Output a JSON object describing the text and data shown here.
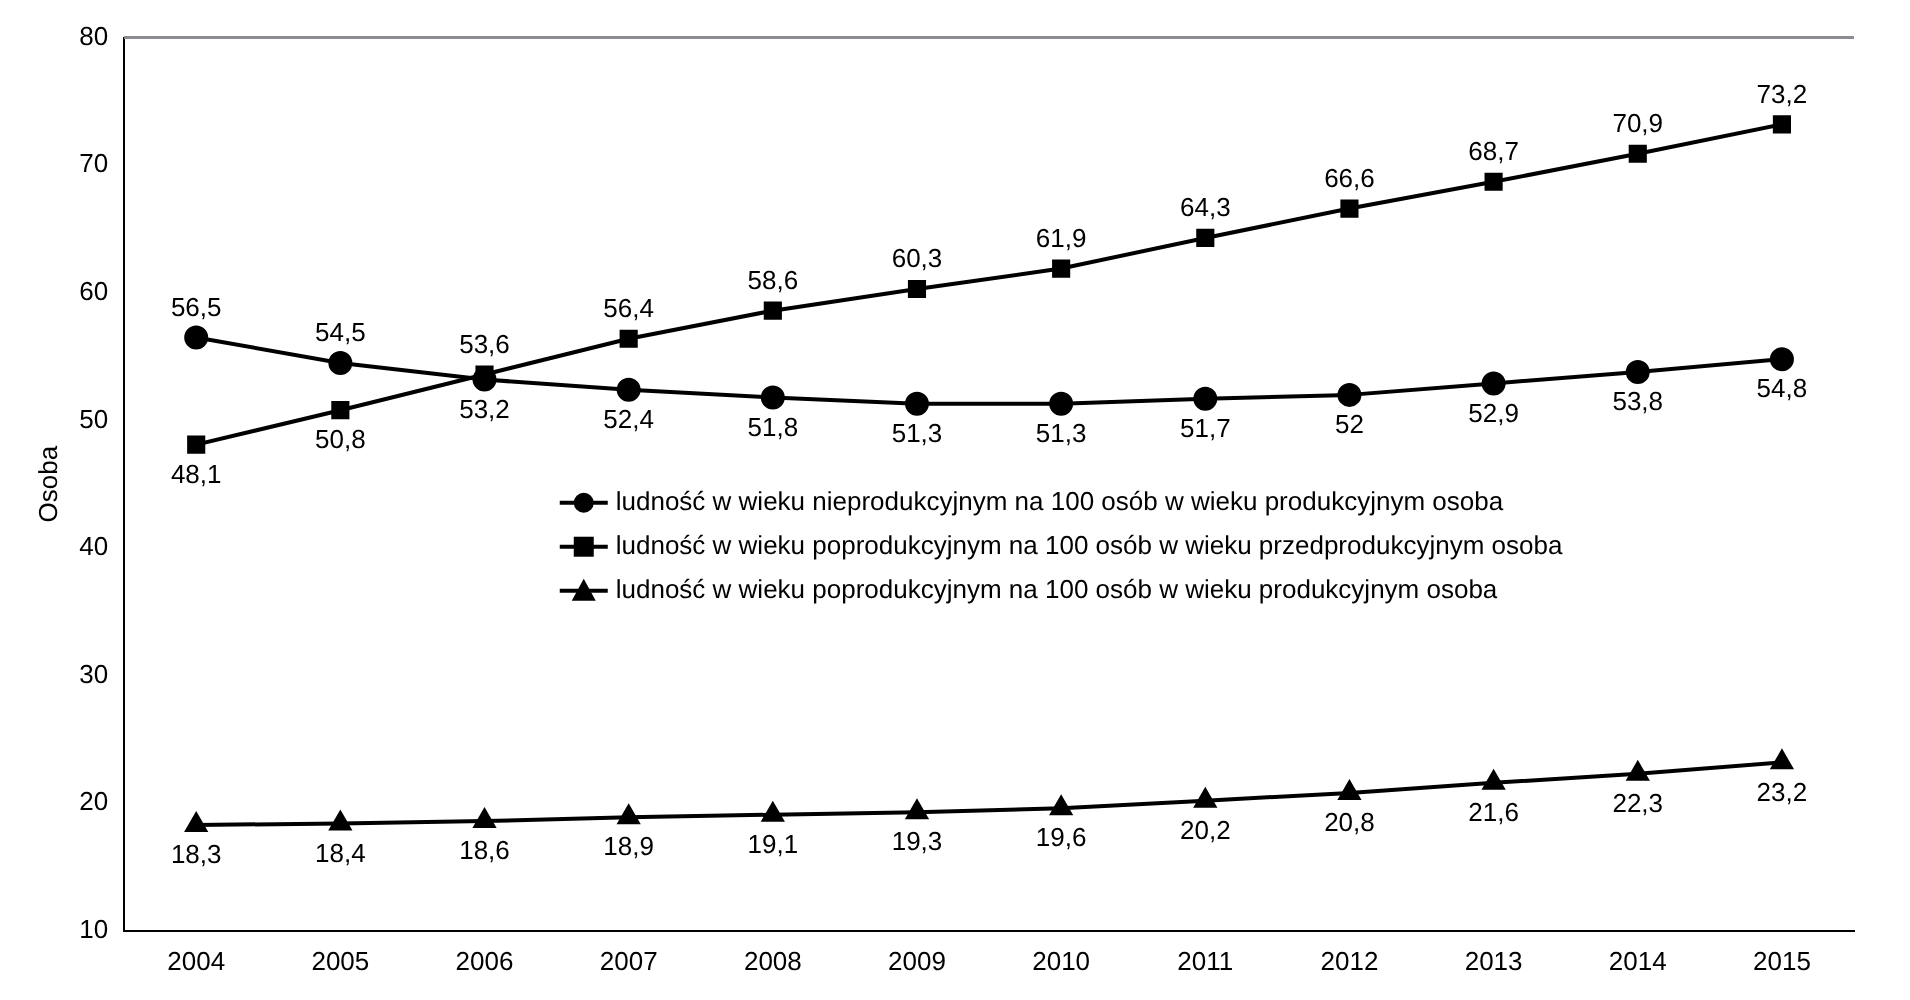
{
  "chart_data": {
    "type": "line",
    "ylabel": "Osoba",
    "categories": [
      "2004",
      "2005",
      "2006",
      "2007",
      "2008",
      "2009",
      "2010",
      "2011",
      "2012",
      "2013",
      "2014",
      "2015"
    ],
    "series": [
      {
        "name": "ludność w wieku nieprodukcyjnym na 100 osób w wieku produkcyjnym osoba",
        "color": "#000000",
        "marker": "circle",
        "values": [
          56.5,
          54.5,
          53.2,
          52.4,
          51.8,
          51.3,
          51.3,
          51.7,
          52,
          52.9,
          53.8,
          54.8
        ],
        "value_labels": [
          "56,5",
          "54,5",
          "53,2",
          "52,4",
          "51,8",
          "51,3",
          "51,3",
          "51,7",
          "52",
          "52,9",
          "53,8",
          "54,8"
        ]
      },
      {
        "name": "ludność w wieku poprodukcyjnym na 100 osób w wieku przedprodukcyjnym osoba",
        "color": "#000000",
        "marker": "square",
        "values": [
          48.1,
          50.8,
          53.6,
          56.4,
          58.6,
          60.3,
          61.9,
          64.3,
          66.6,
          68.7,
          70.9,
          73.2
        ],
        "value_labels": [
          "48,1",
          "50,8",
          "53,6",
          "56,4",
          "58,6",
          "60,3",
          "61,9",
          "64,3",
          "66,6",
          "68,7",
          "70,9",
          "73,2"
        ]
      },
      {
        "name": "ludność w wieku poprodukcyjnym na 100 osób w wieku produkcyjnym osoba",
        "color": "#000000",
        "marker": "triangle",
        "values": [
          18.3,
          18.4,
          18.6,
          18.9,
          19.1,
          19.3,
          19.6,
          20.2,
          20.8,
          21.6,
          22.3,
          23.2
        ],
        "value_labels": [
          "18,3",
          "18,4",
          "18,6",
          "18,9",
          "19,1",
          "19,3",
          "19,6",
          "20,2",
          "20,8",
          "21,6",
          "22,3",
          "23,2"
        ]
      }
    ],
    "ylim": [
      10,
      80
    ],
    "yticks": [
      10,
      20,
      30,
      40,
      50,
      60,
      70,
      80
    ],
    "grid": false,
    "legend": "center",
    "line_style": "solid"
  }
}
